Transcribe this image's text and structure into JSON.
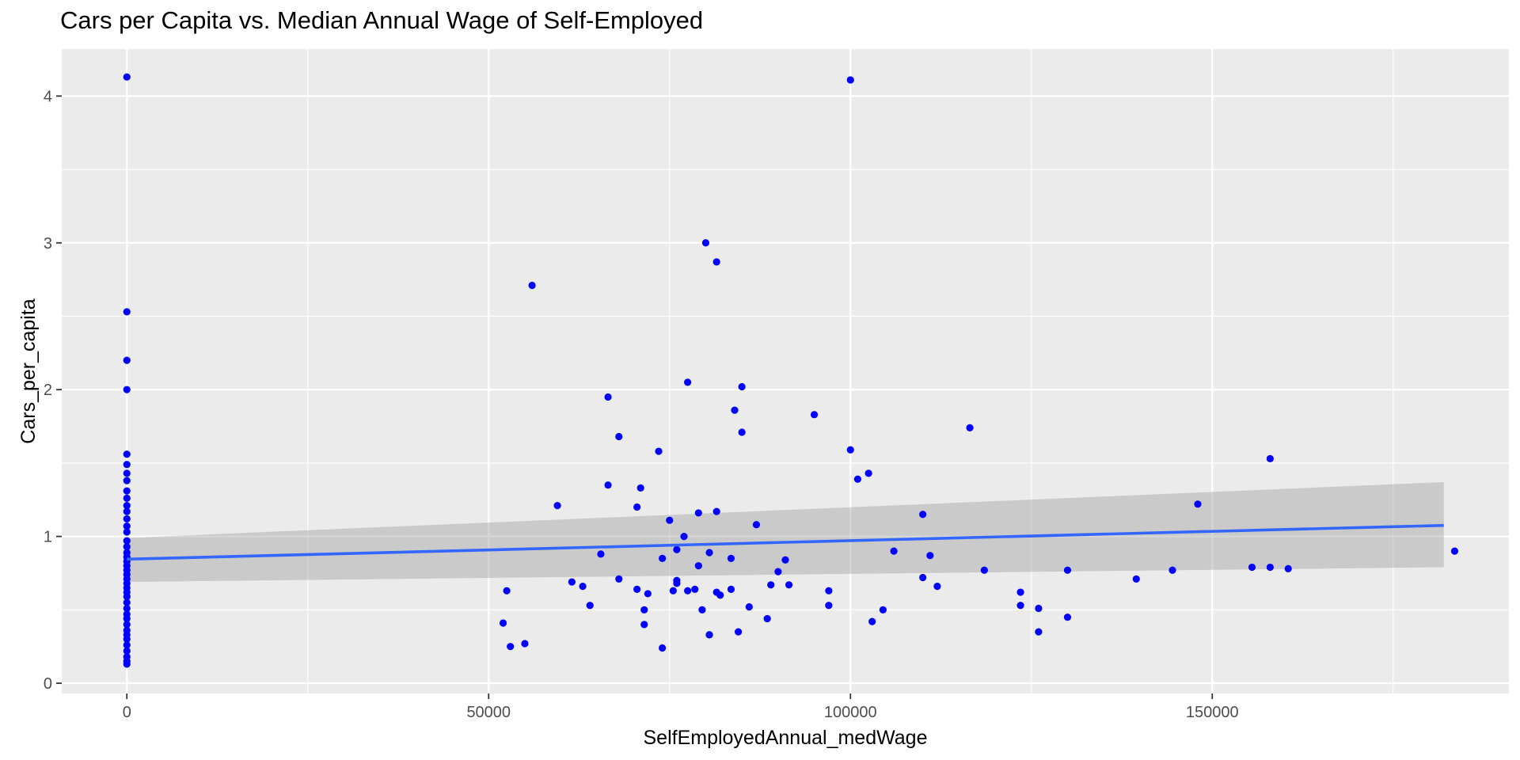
{
  "chart_data": {
    "type": "scatter",
    "title": "Cars per Capita vs. Median Annual Wage of Self-Employed",
    "xlabel": "SelfEmployedAnnual_medWage",
    "ylabel": "Cars_per_capita",
    "xlim": [
      -9000,
      191000
    ],
    "ylim": [
      -0.07,
      4.32
    ],
    "x_ticks": [
      0,
      50000,
      100000,
      150000
    ],
    "x_tick_labels": [
      "0",
      "50000",
      "100000",
      "150000"
    ],
    "y_ticks": [
      0,
      1,
      2,
      3,
      4
    ],
    "y_tick_labels": [
      "0",
      "1",
      "2",
      "3",
      "4"
    ],
    "grid": true,
    "background": "#ebebeb",
    "point_color": "#0000ff",
    "line_color": "#3366ff",
    "ribbon_color": "#999999",
    "trend_line": {
      "method": "linear",
      "x": [
        0,
        182000
      ],
      "y": [
        0.845,
        1.075
      ],
      "ci_lower": [
        0.69,
        0.79
      ],
      "ci_upper": [
        0.99,
        1.37
      ]
    },
    "points": [
      [
        0,
        4.13
      ],
      [
        0,
        2.53
      ],
      [
        0,
        2.2
      ],
      [
        0,
        2.0
      ],
      [
        0,
        1.56
      ],
      [
        0,
        1.49
      ],
      [
        0,
        1.43
      ],
      [
        0,
        1.38
      ],
      [
        0,
        1.31
      ],
      [
        0,
        1.26
      ],
      [
        0,
        1.21
      ],
      [
        0,
        1.17
      ],
      [
        0,
        1.12
      ],
      [
        0,
        1.07
      ],
      [
        0,
        1.03
      ],
      [
        0,
        0.97
      ],
      [
        0,
        0.93
      ],
      [
        0,
        0.89
      ],
      [
        0,
        0.86
      ],
      [
        0,
        0.83
      ],
      [
        0,
        0.8
      ],
      [
        0,
        0.77
      ],
      [
        0,
        0.74
      ],
      [
        0,
        0.71
      ],
      [
        0,
        0.68
      ],
      [
        0,
        0.65
      ],
      [
        0,
        0.62
      ],
      [
        0,
        0.59
      ],
      [
        0,
        0.55
      ],
      [
        0,
        0.51
      ],
      [
        0,
        0.47
      ],
      [
        0,
        0.44
      ],
      [
        0,
        0.4
      ],
      [
        0,
        0.36
      ],
      [
        0,
        0.33
      ],
      [
        0,
        0.3
      ],
      [
        0,
        0.26
      ],
      [
        0,
        0.22
      ],
      [
        0,
        0.18
      ],
      [
        0,
        0.15
      ],
      [
        0,
        0.13
      ],
      [
        52000,
        0.41
      ],
      [
        52500,
        0.63
      ],
      [
        53000,
        0.25
      ],
      [
        55000,
        0.27
      ],
      [
        56000,
        2.71
      ],
      [
        59500,
        1.21
      ],
      [
        61500,
        0.69
      ],
      [
        63000,
        0.66
      ],
      [
        64000,
        0.53
      ],
      [
        65500,
        0.88
      ],
      [
        66500,
        1.95
      ],
      [
        66500,
        1.35
      ],
      [
        68000,
        0.71
      ],
      [
        68000,
        1.68
      ],
      [
        70500,
        1.2
      ],
      [
        70500,
        0.64
      ],
      [
        71000,
        1.33
      ],
      [
        71500,
        0.5
      ],
      [
        71500,
        0.4
      ],
      [
        72000,
        0.61
      ],
      [
        73500,
        1.58
      ],
      [
        74000,
        0.85
      ],
      [
        74000,
        0.24
      ],
      [
        75000,
        1.11
      ],
      [
        75500,
        0.63
      ],
      [
        76000,
        0.91
      ],
      [
        76000,
        0.7
      ],
      [
        76000,
        0.68
      ],
      [
        77000,
        1.0
      ],
      [
        77500,
        2.05
      ],
      [
        77500,
        0.63
      ],
      [
        78500,
        0.64
      ],
      [
        79000,
        1.16
      ],
      [
        79000,
        0.8
      ],
      [
        79500,
        0.5
      ],
      [
        80000,
        3.0
      ],
      [
        80500,
        0.89
      ],
      [
        80500,
        0.33
      ],
      [
        80500,
        0.33
      ],
      [
        81500,
        2.87
      ],
      [
        81500,
        1.17
      ],
      [
        81500,
        0.62
      ],
      [
        82000,
        0.6
      ],
      [
        83500,
        0.85
      ],
      [
        83500,
        0.64
      ],
      [
        84000,
        1.86
      ],
      [
        84500,
        0.35
      ],
      [
        85000,
        1.71
      ],
      [
        85000,
        2.02
      ],
      [
        86000,
        0.52
      ],
      [
        87000,
        1.08
      ],
      [
        88500,
        0.44
      ],
      [
        89000,
        0.67
      ],
      [
        90000,
        0.76
      ],
      [
        91000,
        0.84
      ],
      [
        91500,
        0.67
      ],
      [
        95000,
        1.83
      ],
      [
        97000,
        0.63
      ],
      [
        97000,
        0.53
      ],
      [
        100000,
        4.11
      ],
      [
        100000,
        1.59
      ],
      [
        101000,
        1.39
      ],
      [
        102500,
        1.43
      ],
      [
        103000,
        0.42
      ],
      [
        104500,
        0.5
      ],
      [
        106000,
        0.9
      ],
      [
        110000,
        1.15
      ],
      [
        110000,
        0.72
      ],
      [
        111000,
        0.87
      ],
      [
        112000,
        0.66
      ],
      [
        116500,
        1.74
      ],
      [
        118500,
        0.77
      ],
      [
        123500,
        0.62
      ],
      [
        123500,
        0.53
      ],
      [
        126000,
        0.51
      ],
      [
        126000,
        0.35
      ],
      [
        130000,
        0.45
      ],
      [
        130000,
        0.77
      ],
      [
        139500,
        0.71
      ],
      [
        144500,
        0.77
      ],
      [
        148000,
        1.22
      ],
      [
        155500,
        0.79
      ],
      [
        158000,
        1.53
      ],
      [
        158000,
        0.79
      ],
      [
        160500,
        0.78
      ],
      [
        183500,
        0.9
      ]
    ]
  }
}
